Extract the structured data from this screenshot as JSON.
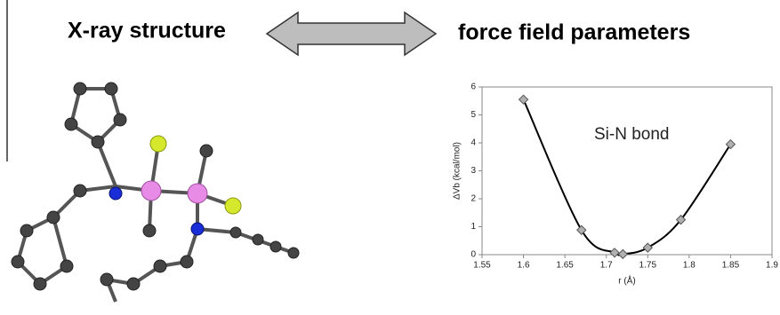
{
  "headings": {
    "left": "X-ray structure",
    "right": "force field parameters"
  },
  "chart_data": {
    "type": "line",
    "annotation": "Si-N bond",
    "x_label": "r (Å)",
    "y_label": "ΔVb (kcal/mol)",
    "x": [
      1.6,
      1.67,
      1.71,
      1.72,
      1.75,
      1.79,
      1.85
    ],
    "series": [
      {
        "name": "Si-N bond",
        "color": "#000000",
        "marker_color": "#b0b0b0",
        "values": [
          5.55,
          0.88,
          0.07,
          0.02,
          0.25,
          1.25,
          3.95
        ]
      }
    ],
    "xlim": [
      1.55,
      1.9
    ],
    "xticks": [
      1.55,
      1.6,
      1.65,
      1.7,
      1.75,
      1.8,
      1.85,
      1.9
    ],
    "ylim": [
      0,
      6
    ],
    "yticks": [
      0,
      1,
      2,
      3,
      4,
      5,
      6
    ]
  }
}
